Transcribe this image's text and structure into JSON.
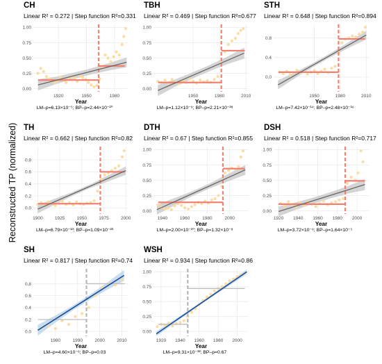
{
  "ylabel": "Reconstructed TP (normalized)",
  "xlabel": "Year",
  "colors": {
    "point": "#fdd9a0",
    "grid": "#ebebeb",
    "orange_step": "#f08070",
    "orange_break": "#f08070",
    "gray_line": "#666666",
    "gray_band": "#c9c9c9",
    "blue_line": "#1f4e9a",
    "blue_band": "#b9d6ea",
    "gray_step": "#bdbdbd",
    "gray_break": "#b5b5b5"
  },
  "chart_data": [
    {
      "id": "CH",
      "type": "scatter",
      "title": "CH",
      "stats": "Linear R² = 0.272 |  Step function R²=0.331",
      "pvalues": "LM–p=6.13×10⁻⁵; BP–p=2.44×10⁻²⁰",
      "xlim": [
        1893,
        1995
      ],
      "ylim": [
        -0.05,
        1.05
      ],
      "xticks": [
        1920,
        1950,
        1980
      ],
      "yticks": [
        0.0,
        0.25,
        0.5,
        0.75,
        1.0
      ],
      "ytick_labels": [
        "0.00",
        "0.25",
        "0.50",
        "0.75",
        "1.00"
      ],
      "palette": "orange",
      "linear": {
        "x": [
          1898,
          1993
        ],
        "y": [
          0.06,
          0.43
        ],
        "band": [
          0.09,
          0.06,
          0.05,
          0.05,
          0.06,
          0.08
        ]
      },
      "step": {
        "break": 1963,
        "before": 0.14,
        "after": 0.37
      },
      "points": {
        "x": [
          1898,
          1901,
          1904,
          1907,
          1910,
          1913,
          1916,
          1919,
          1922,
          1925,
          1928,
          1931,
          1934,
          1937,
          1940,
          1943,
          1946,
          1949,
          1952,
          1955,
          1958,
          1961,
          1964,
          1967,
          1970,
          1973,
          1976,
          1979,
          1982,
          1985,
          1988,
          1990,
          1992
        ],
        "y": [
          0.25,
          0.33,
          0.28,
          0.2,
          0.16,
          0.12,
          0.1,
          0.13,
          0.18,
          0.14,
          0.1,
          0.15,
          0.19,
          0.17,
          0.12,
          0.2,
          0.18,
          0.15,
          0.1,
          0.06,
          0.03,
          0.05,
          0.16,
          0.35,
          0.55,
          0.5,
          0.44,
          0.52,
          0.6,
          0.55,
          0.72,
          0.85,
          0.98
        ]
      }
    },
    {
      "id": "TBH",
      "type": "scatter",
      "title": "TBH",
      "stats": "Linear R² = 0.469 |  Step function R²=0.677",
      "pvalues": "LM–p=1.12×10⁻⁹; BP–p=2.21×10⁻²⁸",
      "xlim": [
        1905,
        2013
      ],
      "ylim": [
        -0.05,
        1.05
      ],
      "xticks": [
        1950,
        1980,
        2010
      ],
      "yticks": [
        0.0,
        0.25,
        0.5,
        0.75,
        1.0
      ],
      "ytick_labels": [
        "0.00",
        "0.25",
        "0.50",
        "0.75",
        "1.00"
      ],
      "palette": "orange",
      "linear": {
        "x": [
          1910,
          2008
        ],
        "y": [
          -0.03,
          0.58
        ],
        "band": [
          0.09,
          0.06,
          0.05,
          0.05,
          0.06,
          0.09
        ]
      },
      "step": {
        "break": 1982,
        "before": 0.1,
        "after": 0.62
      },
      "points": {
        "x": [
          1910,
          1914,
          1918,
          1922,
          1926,
          1930,
          1934,
          1938,
          1942,
          1946,
          1950,
          1954,
          1958,
          1962,
          1966,
          1970,
          1974,
          1978,
          1982,
          1986,
          1990,
          1994,
          1998,
          2001,
          2004,
          2007
        ],
        "y": [
          0.12,
          0.1,
          0.14,
          0.09,
          0.15,
          0.11,
          0.08,
          0.13,
          0.1,
          0.16,
          0.12,
          0.09,
          0.14,
          0.11,
          0.13,
          0.1,
          0.15,
          0.2,
          0.42,
          0.6,
          0.72,
          0.78,
          0.82,
          0.9,
          0.95,
          0.98
        ]
      }
    },
    {
      "id": "STH",
      "type": "scatter",
      "title": "STH",
      "stats": "Linear R² = 0.648 |  Step function R²=0.894",
      "pvalues": "LM–p=7.42×10⁻¹⁴; BP–p=2.48×10⁻¹⁶",
      "xlim": [
        1903,
        2013
      ],
      "ylim": [
        -0.3,
        1.08
      ],
      "xticks": [
        1950,
        1980,
        2010
      ],
      "yticks": [
        0.0,
        0.4,
        0.8
      ],
      "ytick_labels": [
        "0.0",
        "0.4",
        "0.8"
      ],
      "palette": "orange",
      "linear": {
        "x": [
          1908,
          2010
        ],
        "y": [
          -0.16,
          0.86
        ],
        "band": [
          0.09,
          0.06,
          0.04,
          0.04,
          0.06,
          0.09
        ]
      },
      "step": {
        "break": 1978,
        "before": 0.1,
        "after": 0.78
      },
      "points": {
        "x": [
          1910,
          1914,
          1918,
          1922,
          1926,
          1930,
          1934,
          1938,
          1942,
          1946,
          1950,
          1954,
          1958,
          1962,
          1966,
          1970,
          1974,
          1978,
          1982,
          1986,
          1990,
          1994,
          1998,
          2002,
          2006,
          2009
        ],
        "y": [
          0.1,
          0.07,
          0.12,
          0.05,
          0.09,
          0.14,
          0.08,
          0.11,
          0.06,
          0.1,
          0.13,
          0.07,
          0.12,
          0.16,
          0.09,
          0.18,
          0.22,
          0.5,
          0.7,
          0.78,
          0.8,
          0.84,
          0.82,
          0.88,
          0.92,
          1.02
        ]
      }
    },
    {
      "id": "TH",
      "type": "scatter",
      "title": "TH",
      "stats": "Linear R² = 0.662 |  Step function R²=0.82",
      "pvalues": "LM–p=6.79×10⁻¹³; BP–p=1.09×10⁻²³",
      "xlim": [
        1895,
        2003
      ],
      "ylim": [
        -0.1,
        1.02
      ],
      "xticks": [
        1900,
        1925,
        1950,
        1975,
        2000
      ],
      "yticks": [
        0.0,
        0.2,
        0.4,
        0.6,
        0.8
      ],
      "ytick_labels": [
        "0.0",
        "0.2",
        "0.4",
        "0.6",
        "0.8"
      ],
      "palette": "orange",
      "linear": {
        "x": [
          1900,
          2000
        ],
        "y": [
          -0.02,
          0.62
        ],
        "band": [
          0.07,
          0.05,
          0.03,
          0.03,
          0.05,
          0.07
        ]
      },
      "step": {
        "break": 1971,
        "before": 0.07,
        "after": 0.6
      },
      "points": {
        "x": [
          1900,
          1904,
          1908,
          1912,
          1916,
          1920,
          1924,
          1928,
          1932,
          1936,
          1940,
          1944,
          1948,
          1952,
          1956,
          1960,
          1964,
          1968,
          1972,
          1976,
          1980,
          1984,
          1988,
          1992,
          1996,
          1998
        ],
        "y": [
          0.06,
          0.09,
          0.05,
          0.1,
          0.07,
          0.04,
          0.08,
          0.11,
          0.06,
          0.09,
          0.05,
          0.1,
          0.07,
          0.06,
          0.08,
          0.09,
          0.12,
          0.28,
          0.48,
          0.55,
          0.58,
          0.62,
          0.66,
          0.7,
          0.85,
          0.95
        ]
      }
    },
    {
      "id": "DTH",
      "type": "scatter",
      "title": "DTH",
      "stats": "Linear R² = 0.67 |  Step function R²=0.855",
      "pvalues": "LM–p=2.00×10⁻¹⁰; BP–p=1.32×10⁻⁸",
      "xlim": [
        1932,
        2017
      ],
      "ylim": [
        -0.05,
        1.05
      ],
      "xticks": [
        1940,
        1960,
        1980,
        2000
      ],
      "yticks": [
        0.0,
        0.25,
        0.5,
        0.75,
        1.0
      ],
      "ytick_labels": [
        "0.00",
        "0.25",
        "0.50",
        "0.75",
        "1.00"
      ],
      "palette": "orange",
      "linear": {
        "x": [
          1935,
          2014
        ],
        "y": [
          0.02,
          0.67
        ],
        "band": [
          0.08,
          0.06,
          0.04,
          0.04,
          0.06,
          0.08
        ]
      },
      "step": {
        "break": 1994,
        "before": 0.14,
        "after": 0.69
      },
      "points": {
        "x": [
          1936,
          1939,
          1942,
          1945,
          1948,
          1951,
          1954,
          1957,
          1960,
          1963,
          1966,
          1969,
          1972,
          1975,
          1978,
          1981,
          1984,
          1987,
          1990,
          1993,
          1996,
          1999,
          2002,
          2005,
          2008,
          2010,
          2012
        ],
        "y": [
          0.1,
          0.06,
          0.03,
          0.04,
          0.02,
          0.08,
          0.12,
          0.09,
          0.05,
          0.03,
          0.07,
          0.1,
          0.14,
          0.12,
          0.16,
          0.13,
          0.18,
          0.2,
          0.25,
          0.4,
          0.62,
          0.66,
          0.7,
          0.68,
          0.72,
          0.88,
          0.98
        ]
      }
    },
    {
      "id": "DSH",
      "type": "scatter",
      "title": "DSH",
      "stats": "Linear R² = 0.518 |  Step function R²=0.717",
      "pvalues": "LM–p=3.72×10⁻⁶; BP–p=1.64×10⁻⁵",
      "xlim": [
        1915,
        2012
      ],
      "ylim": [
        -0.05,
        1.05
      ],
      "xticks": [
        1920,
        1940,
        1960,
        1980,
        2000
      ],
      "yticks": [
        0.0,
        0.25,
        0.5,
        0.75,
        1.0
      ],
      "ytick_labels": [
        "0.00",
        "0.25",
        "0.50",
        "0.75",
        "1.00"
      ],
      "palette": "orange",
      "linear": {
        "x": [
          1920,
          2008
        ],
        "y": [
          -0.01,
          0.43
        ],
        "band": [
          0.08,
          0.06,
          0.05,
          0.05,
          0.06,
          0.09
        ]
      },
      "step": {
        "break": 1988,
        "before": 0.11,
        "after": 0.49
      },
      "points": {
        "x": [
          1922,
          1926,
          1930,
          1934,
          1938,
          1942,
          1946,
          1950,
          1954,
          1958,
          1962,
          1966,
          1970,
          1974,
          1978,
          1982,
          1986,
          1990,
          1994,
          1998,
          2001,
          2004,
          2006
        ],
        "y": [
          0.12,
          0.08,
          0.15,
          0.1,
          0.06,
          0.13,
          0.09,
          0.14,
          0.11,
          0.07,
          0.12,
          0.16,
          0.1,
          0.13,
          0.15,
          0.18,
          0.2,
          0.45,
          0.55,
          0.5,
          0.62,
          0.98,
          0.8
        ]
      }
    },
    {
      "id": "SH",
      "type": "scatter",
      "title": "SH",
      "stats": "Linear R² = 0.817 |  Step function R²=0.74",
      "pvalues": "LM–p=4.60×10⁻⁶; BP–p=0.03",
      "xlim": [
        1970,
        2013
      ],
      "ylim": [
        -0.08,
        1.05
      ],
      "xticks": [
        1980,
        1990,
        2000,
        2010
      ],
      "yticks": [
        0.0,
        0.2,
        0.4,
        0.6,
        0.8
      ],
      "ytick_labels": [
        "0.0",
        "0.2",
        "0.4",
        "0.6",
        "0.8"
      ],
      "palette": "blue",
      "linear": {
        "x": [
          1972,
          2011
        ],
        "y": [
          0.02,
          0.94
        ],
        "band": [
          0.09,
          0.06,
          0.04,
          0.04,
          0.06,
          0.09
        ]
      },
      "step": {
        "break": 1994,
        "before": 0.2,
        "after": 0.8
      },
      "points": {
        "x": [
          1974,
          1977,
          1980,
          1983,
          1986,
          1989,
          1992,
          1995,
          1998,
          2001,
          2004,
          2007,
          2010
        ],
        "y": [
          0.06,
          0.09,
          0.05,
          0.18,
          0.12,
          0.25,
          0.3,
          0.4,
          0.6,
          0.74,
          0.8,
          0.78,
          0.86
        ]
      }
    },
    {
      "id": "WSH",
      "type": "scatter",
      "title": "WSH",
      "stats": "Linear R² = 0.934 |  Step function R²=0.86",
      "pvalues": "LM–p=9.31×10⁻³²; BP–p=0.67",
      "xlim": [
        1912,
        2012
      ],
      "ylim": [
        -0.08,
        1.05
      ],
      "xticks": [
        1920,
        1940,
        1960,
        1980,
        2000
      ],
      "yticks": [
        0.0,
        0.25,
        0.5,
        0.75,
        1.0
      ],
      "ytick_labels": [
        "0.00",
        "0.25",
        "0.50",
        "0.75",
        "1.00"
      ],
      "palette": "blue",
      "linear": {
        "x": [
          1915,
          2010
        ],
        "y": [
          -0.04,
          1.0
        ],
        "band": [
          0.04,
          0.03,
          0.02,
          0.02,
          0.03,
          0.04
        ]
      },
      "step": {
        "break": 1948,
        "before": 0.12,
        "after": 0.72
      },
      "points": {
        "x": [
          1916,
          1920,
          1924,
          1928,
          1932,
          1936,
          1940,
          1944,
          1948,
          1952,
          1956,
          1960,
          1964,
          1968,
          1972,
          1976,
          1980,
          1984,
          1988,
          1992,
          1996,
          2000,
          2004,
          2008
        ],
        "y": [
          0.08,
          0.12,
          0.1,
          0.14,
          0.09,
          0.13,
          0.15,
          0.18,
          0.25,
          0.32,
          0.38,
          0.45,
          0.52,
          0.58,
          0.62,
          0.68,
          0.72,
          0.75,
          0.8,
          0.85,
          0.88,
          0.92,
          0.95,
          0.97
        ]
      }
    }
  ]
}
